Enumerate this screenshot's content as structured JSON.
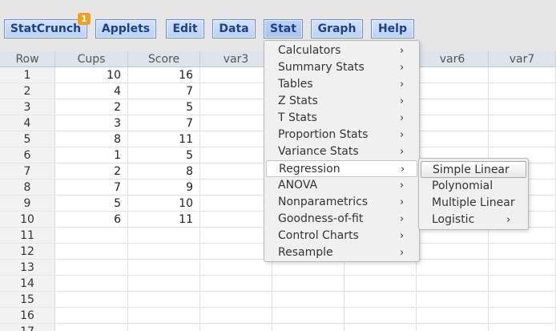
{
  "menubar": {
    "items": [
      {
        "label": "StatCrunch",
        "name": "statcrunch-menu-button"
      },
      {
        "label": "Applets",
        "name": "applets-menu-button"
      },
      {
        "label": "Edit",
        "name": "edit-menu-button"
      },
      {
        "label": "Data",
        "name": "data-menu-button"
      },
      {
        "label": "Stat",
        "name": "stat-menu-button"
      },
      {
        "label": "Graph",
        "name": "graph-menu-button"
      },
      {
        "label": "Help",
        "name": "help-menu-button"
      }
    ],
    "badge": "1"
  },
  "grid": {
    "row_header": "Row",
    "columns": [
      "Cups",
      "Score",
      "var3",
      "",
      "",
      "var6",
      "var7"
    ],
    "rows": [
      {
        "n": "1",
        "cups": "10",
        "score": "16"
      },
      {
        "n": "2",
        "cups": "4",
        "score": "7"
      },
      {
        "n": "3",
        "cups": "2",
        "score": "5"
      },
      {
        "n": "4",
        "cups": "3",
        "score": "7"
      },
      {
        "n": "5",
        "cups": "8",
        "score": "11"
      },
      {
        "n": "6",
        "cups": "1",
        "score": "5"
      },
      {
        "n": "7",
        "cups": "2",
        "score": "8"
      },
      {
        "n": "8",
        "cups": "7",
        "score": "9"
      },
      {
        "n": "9",
        "cups": "5",
        "score": "10"
      },
      {
        "n": "10",
        "cups": "6",
        "score": "11"
      },
      {
        "n": "11",
        "cups": "",
        "score": ""
      },
      {
        "n": "12",
        "cups": "",
        "score": ""
      },
      {
        "n": "13",
        "cups": "",
        "score": ""
      },
      {
        "n": "14",
        "cups": "",
        "score": ""
      },
      {
        "n": "15",
        "cups": "",
        "score": ""
      },
      {
        "n": "16",
        "cups": "",
        "score": ""
      },
      {
        "n": "17",
        "cups": "",
        "score": ""
      }
    ]
  },
  "stat_menu": {
    "items": [
      "Calculators",
      "Summary Stats",
      "Tables",
      "Z Stats",
      "T Stats",
      "Proportion Stats",
      "Variance Stats",
      "Regression",
      "ANOVA",
      "Nonparametrics",
      "Goodness-of-fit",
      "Control Charts",
      "Resample"
    ],
    "highlighted": "Regression",
    "arrow": "›"
  },
  "regression_submenu": {
    "items": [
      "Simple Linear",
      "Polynomial",
      "Multiple Linear",
      "Logistic"
    ],
    "highlighted": "Simple Linear",
    "arrow_item": "Logistic",
    "arrow": "›"
  }
}
